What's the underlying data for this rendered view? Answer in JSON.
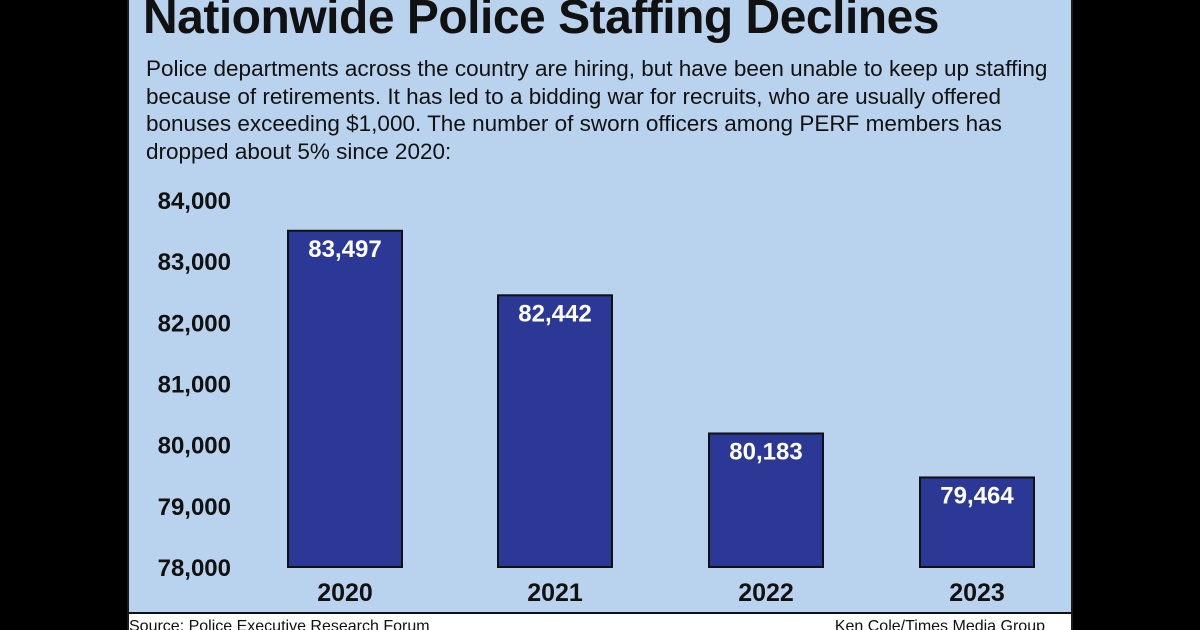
{
  "header": {
    "title": "Nationwide Police Staffing Declines",
    "description": "Police departments across the country are hiring, but have been unable to keep up staffing because of retirements. It has led to a bidding war for recruits, who are usually offered bonuses exceeding $1,000. The number of sworn officers among PERF members has dropped about 5% since 2020:"
  },
  "footer": {
    "source": "Source: Police Executive Research Forum",
    "credit": "Ken Cole/Times Media Group"
  },
  "colors": {
    "panel_background": "#b9d3ee",
    "bar_fill": "#2c3896",
    "bar_outline": "#111111",
    "bar_label": "#ffffff",
    "text": "#111111"
  },
  "chart_data": {
    "type": "bar",
    "title": "",
    "xlabel": "",
    "ylabel": "",
    "categories": [
      "2020",
      "2021",
      "2022",
      "2023"
    ],
    "values": [
      83497,
      82442,
      80183,
      79464
    ],
    "value_labels": [
      "83,497",
      "82,442",
      "80,183",
      "79,464"
    ],
    "ylim": [
      78000,
      84000
    ],
    "yticks": [
      78000,
      79000,
      80000,
      81000,
      82000,
      83000,
      84000
    ],
    "ytick_labels": [
      "78,000",
      "79,000",
      "80,000",
      "81,000",
      "82,000",
      "83,000",
      "84,000"
    ],
    "grid": false,
    "legend": "none"
  }
}
